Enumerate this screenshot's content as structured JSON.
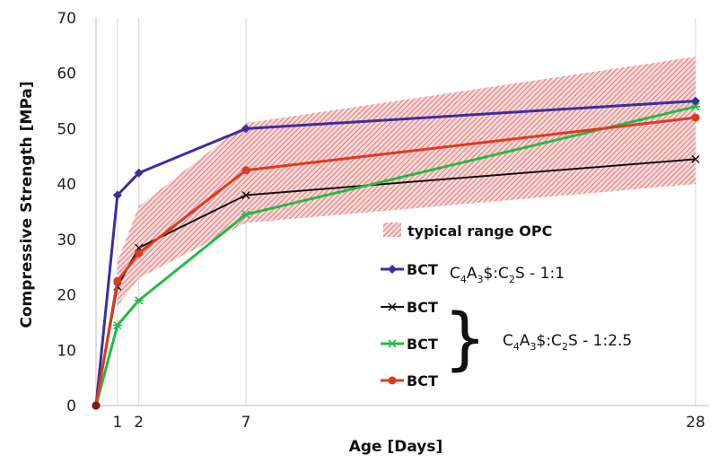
{
  "chart_data": {
    "type": "line",
    "xlabel": "Age [Days]",
    "ylabel": "Compressive Strength [MPa]",
    "xlim": [
      0,
      28
    ],
    "ylim": [
      0,
      70
    ],
    "x_ticks": [
      1,
      2,
      7,
      28
    ],
    "y_ticks": [
      0,
      10,
      20,
      30,
      40,
      50,
      60,
      70
    ],
    "grid": "vertical lines at x ticks",
    "legend_position": "center-right",
    "band": {
      "name": "typical range OPC",
      "color": "#e05a5a",
      "x": [
        1,
        2,
        7,
        28
      ],
      "low": [
        18,
        23,
        33,
        40
      ],
      "high": [
        26,
        36,
        51,
        63
      ]
    },
    "series": [
      {
        "name": "BCT",
        "color": "#3b2fa0",
        "marker": "diamond",
        "x": [
          0,
          1,
          2,
          7,
          28
        ],
        "values": [
          0,
          38,
          42,
          50,
          55
        ]
      },
      {
        "name": "BCT",
        "color": "#111111",
        "marker": "x",
        "x": [
          0,
          1,
          2,
          7,
          28
        ],
        "values": [
          0,
          21.5,
          28.5,
          38,
          44.5
        ]
      },
      {
        "name": "BCT",
        "color": "#22bb44",
        "marker": "asterisk",
        "x": [
          0,
          1,
          2,
          7,
          28
        ],
        "values": [
          0,
          14.5,
          19,
          34.5,
          54
        ]
      },
      {
        "name": "BCT",
        "color": "#e03a1e",
        "marker": "circle",
        "x": [
          0,
          1,
          2,
          7,
          28
        ],
        "values": [
          0,
          22.5,
          27.5,
          42.5,
          52
        ]
      }
    ],
    "annotations": [
      {
        "prefix": "C",
        "sub1": "4",
        "mid1": "A",
        "sub2": "3",
        "mid2": "$:C",
        "sub3": "2",
        "suffix": "S - 1:1"
      },
      {
        "prefix": "C",
        "sub1": "4",
        "mid1": "A",
        "sub2": "3",
        "mid2": "$:C",
        "sub3": "2",
        "suffix": "S - 1:2.5"
      }
    ]
  }
}
